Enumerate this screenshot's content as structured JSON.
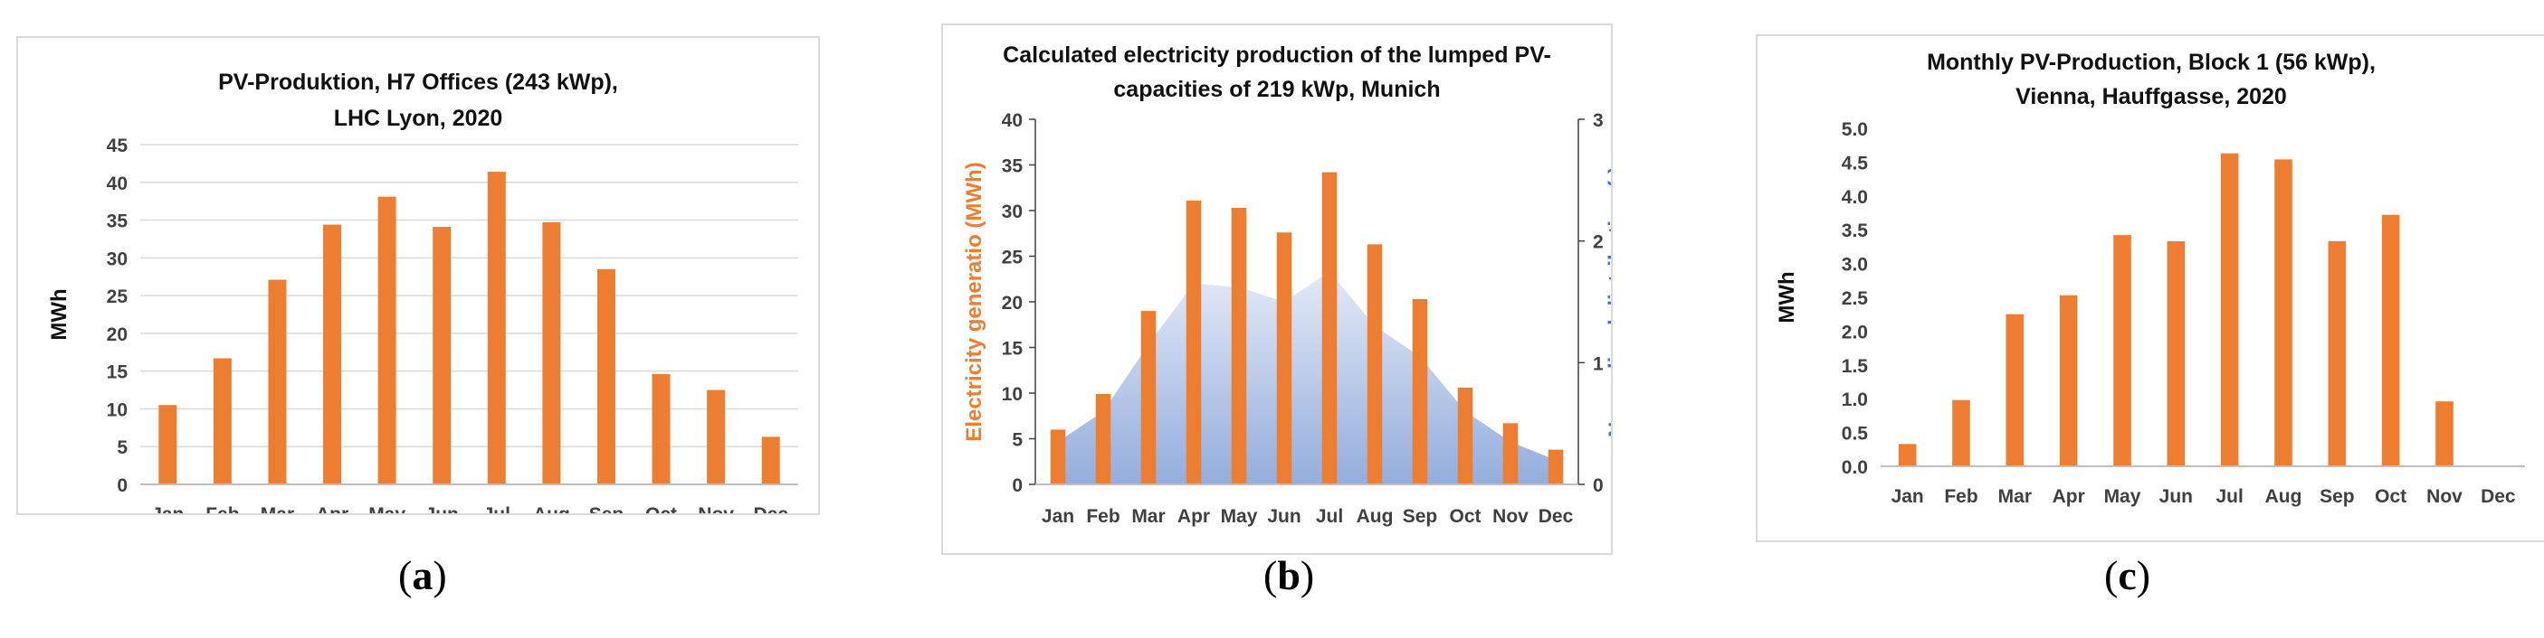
{
  "chart_data": [
    {
      "panel": "a",
      "type": "bar",
      "title_line1": "PV-Produktion, H7 Offices (243 kWp),",
      "title_line2": "LHC Lyon, 2020",
      "ylabel": "MWh",
      "xlabel": "",
      "ylim": [
        0,
        45
      ],
      "yticks": [
        "0",
        "5",
        "10",
        "15",
        "20",
        "25",
        "30",
        "35",
        "40",
        "45"
      ],
      "categories": [
        "Jan",
        "Feb",
        "Mar",
        "Apr",
        "May",
        "Jun",
        "Jul",
        "Aug",
        "Sep",
        "Oct",
        "Nov",
        "Dec"
      ],
      "values": [
        10.5,
        16.7,
        27.1,
        34.4,
        38.1,
        34.1,
        41.4,
        34.7,
        28.5,
        14.6,
        12.5,
        6.3
      ],
      "bar_color": "#ED7D31",
      "grid": true,
      "caption_open": "(",
      "caption_letter": "a",
      "caption_close": ")"
    },
    {
      "panel": "b",
      "type": "bar",
      "title_line1": "Calculated electricity production of the lumped PV-",
      "title_line2": "capacities of 219 kWp, Munich",
      "ylabel": "Electricity generatio (MWh)",
      "y2label": "Normalised  distribution (-)",
      "ylim": [
        0,
        40
      ],
      "y2lim": [
        0,
        3
      ],
      "yticks": [
        "0",
        "5",
        "10",
        "15",
        "20",
        "25",
        "30",
        "35",
        "40"
      ],
      "y2ticks": [
        "0",
        "1",
        "2",
        "3"
      ],
      "categories": [
        "Jan",
        "Feb",
        "Mar",
        "Apr",
        "May",
        "Jun",
        "Jul",
        "Aug",
        "Sep",
        "Oct",
        "Nov",
        "Dec"
      ],
      "values": [
        6.0,
        9.9,
        19.0,
        31.1,
        30.3,
        27.6,
        34.2,
        26.3,
        20.3,
        10.6,
        6.7,
        3.8
      ],
      "area_series_name": "Normalised distribution",
      "area_values": [
        0.35,
        0.6,
        1.15,
        1.65,
        1.62,
        1.5,
        1.75,
        1.3,
        1.05,
        0.6,
        0.35,
        0.2
      ],
      "bar_color": "#ED7D31",
      "area_color": "#8EA9DB",
      "ylabel_color": "#ED7D31",
      "y2label_color": "#4472C4",
      "grid": false,
      "caption_open": "(",
      "caption_letter": "b",
      "caption_close": ")"
    },
    {
      "panel": "c",
      "type": "bar",
      "title_line1": "Monthly PV-Production, Block 1 (56 kWp),",
      "title_line2": "Vienna, Hauffgasse, 2020",
      "ylabel": "MWh",
      "ylim": [
        0,
        5
      ],
      "yticks": [
        "0.0",
        "0.5",
        "1.0",
        "1.5",
        "2.0",
        "2.5",
        "3.0",
        "3.5",
        "4.0",
        "4.5",
        "5.0"
      ],
      "categories": [
        "Jan",
        "Feb",
        "Mar",
        "Apr",
        "May",
        "Jun",
        "Jul",
        "Aug",
        "Sep",
        "Oct",
        "Nov",
        "Dec"
      ],
      "values": [
        0.33,
        0.98,
        2.25,
        2.53,
        3.42,
        3.33,
        4.63,
        4.54,
        3.33,
        3.72,
        0.96,
        0
      ],
      "bar_color": "#ED7D31",
      "grid": false,
      "caption_open": "(",
      "caption_letter": "c",
      "caption_close": ")"
    }
  ]
}
